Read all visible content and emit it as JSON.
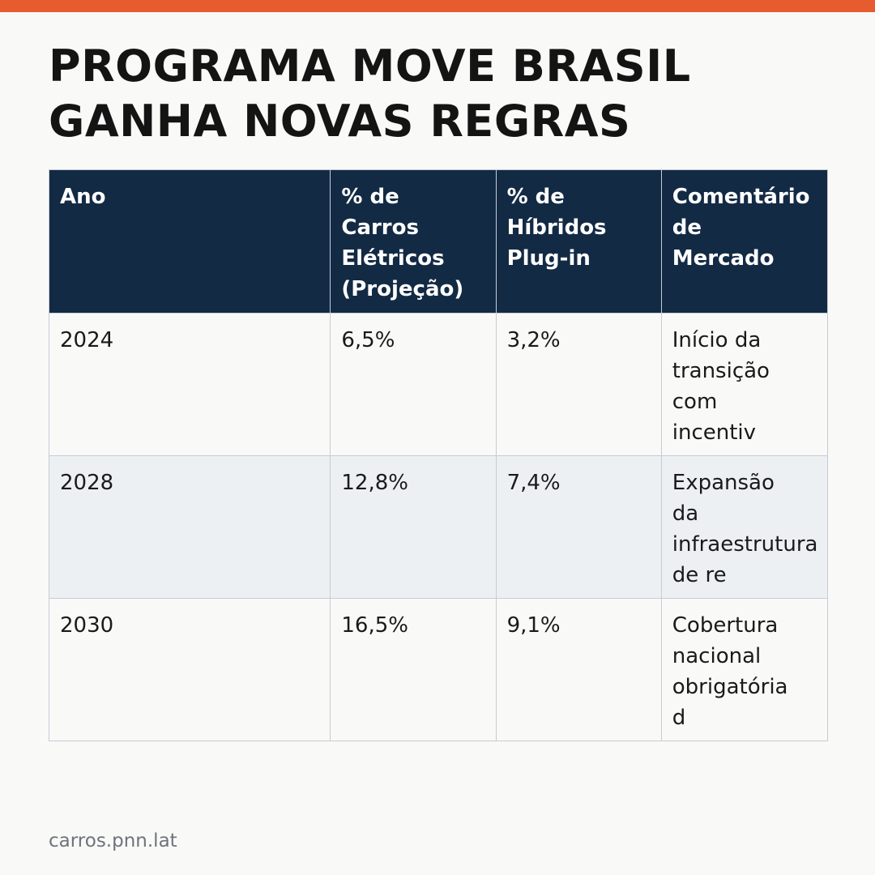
{
  "accent_color": "#e65c2e",
  "header_bg_color": "#132a44",
  "title_lines": [
    "PROGRAMA MOVE BRASIL",
    "GANHA NOVAS REGRAS"
  ],
  "table": {
    "headers": [
      [
        "Ano"
      ],
      [
        "% de",
        "Carros",
        "Elétricos",
        "(Projeção)"
      ],
      [
        "% de",
        "Híbridos",
        "Plug-in"
      ],
      [
        "Comentário",
        "de",
        "Mercado"
      ]
    ],
    "rows": [
      {
        "ano": "2024",
        "eletricos": "6,5%",
        "hibridos": "3,2%",
        "comentario": [
          "Início da",
          "transição",
          "com",
          "incentiv"
        ]
      },
      {
        "ano": "2028",
        "eletricos": "12,8%",
        "hibridos": "7,4%",
        "comentario": [
          "Expansão",
          "da",
          "infraestrutura",
          "de re"
        ]
      },
      {
        "ano": "2030",
        "eletricos": "16,5%",
        "hibridos": "9,1%",
        "comentario": [
          "Cobertura",
          "nacional",
          "obrigatória",
          "d"
        ]
      }
    ]
  },
  "footer": {
    "source": "carros.pnn.lat"
  }
}
